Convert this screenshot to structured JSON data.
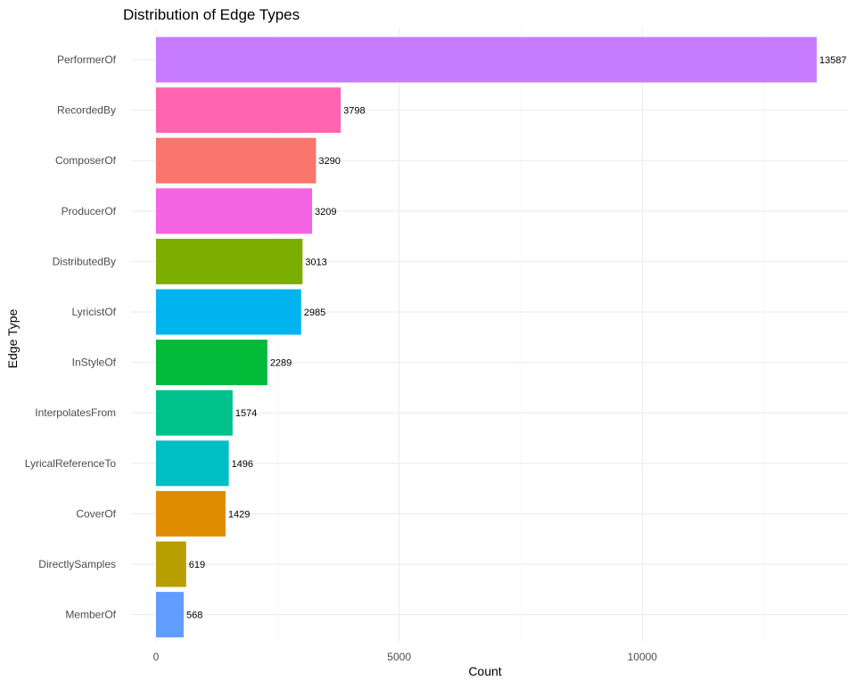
{
  "chart_data": {
    "type": "bar",
    "orientation": "horizontal",
    "title": "Distribution of Edge Types",
    "xlabel": "Count",
    "ylabel": "Edge Type",
    "xlim": [
      0,
      14200
    ],
    "xticks": [
      0,
      5000,
      10000
    ],
    "grid": true,
    "legend": "none",
    "categories": [
      "PerformerOf",
      "RecordedBy",
      "ComposerOf",
      "ProducerOf",
      "DistributedBy",
      "LyricistOf",
      "InStyleOf",
      "InterpolatesFrom",
      "LyricalReferenceTo",
      "CoverOf",
      "DirectlySamples",
      "MemberOf"
    ],
    "values": [
      13587,
      3798,
      3290,
      3209,
      3013,
      2985,
      2289,
      1574,
      1496,
      1429,
      619,
      568
    ],
    "colors": [
      "#C77CFF",
      "#FF64B0",
      "#F8766D",
      "#F564E3",
      "#7CAE00",
      "#00B4F0",
      "#00BA38",
      "#00C08B",
      "#00BFC4",
      "#DE8C00",
      "#B79F00",
      "#619CFF"
    ]
  }
}
